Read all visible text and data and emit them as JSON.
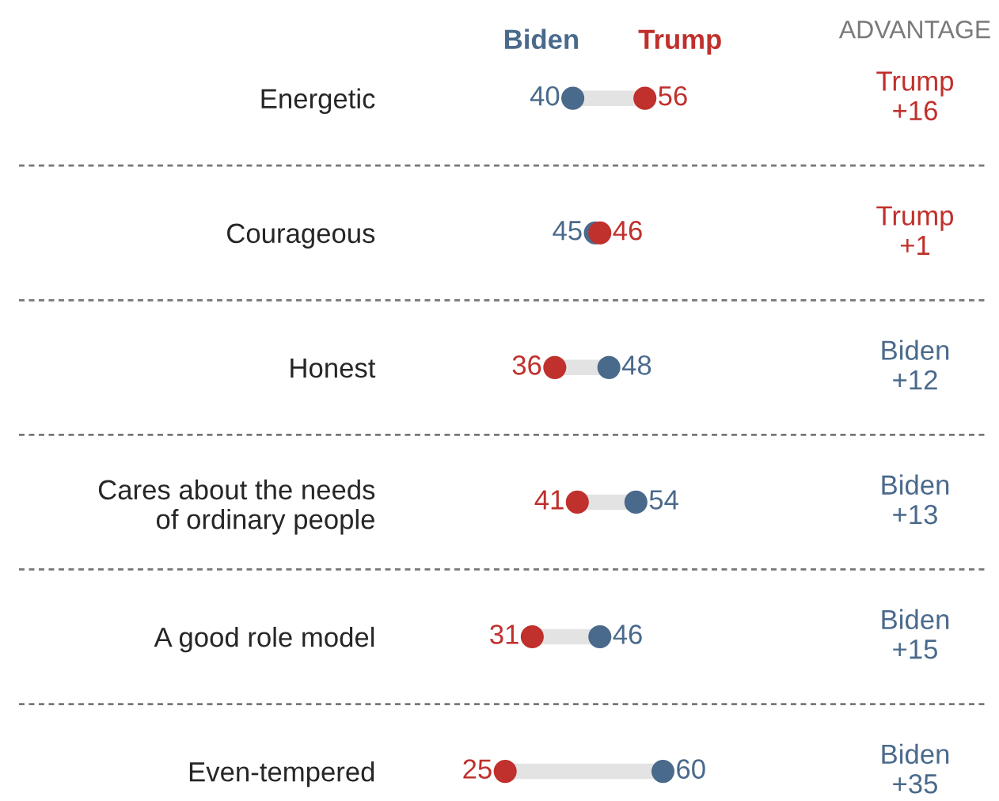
{
  "chart_data": {
    "type": "scatter",
    "orientation": "horizontal",
    "categories": [
      "Energetic",
      "Courageous",
      "Honest",
      "Cares about the needs\nof ordinary people",
      "A good role model",
      "Even-tempered"
    ],
    "series": [
      {
        "name": "Biden",
        "color": "#4a6a8c",
        "values": [
          40,
          45,
          48,
          54,
          46,
          60
        ]
      },
      {
        "name": "Trump",
        "color": "#c0302c",
        "values": [
          56,
          46,
          36,
          41,
          31,
          25
        ]
      }
    ],
    "data_labels": true,
    "tick_labels": "y",
    "grid": false,
    "marker": "circle",
    "annotations": [
      "ADVANTAGE",
      "Trump\n+16",
      "Trump\n+1",
      "Biden\n+12",
      "Biden\n+13",
      "Biden\n+15",
      "Biden\n+35"
    ]
  }
}
